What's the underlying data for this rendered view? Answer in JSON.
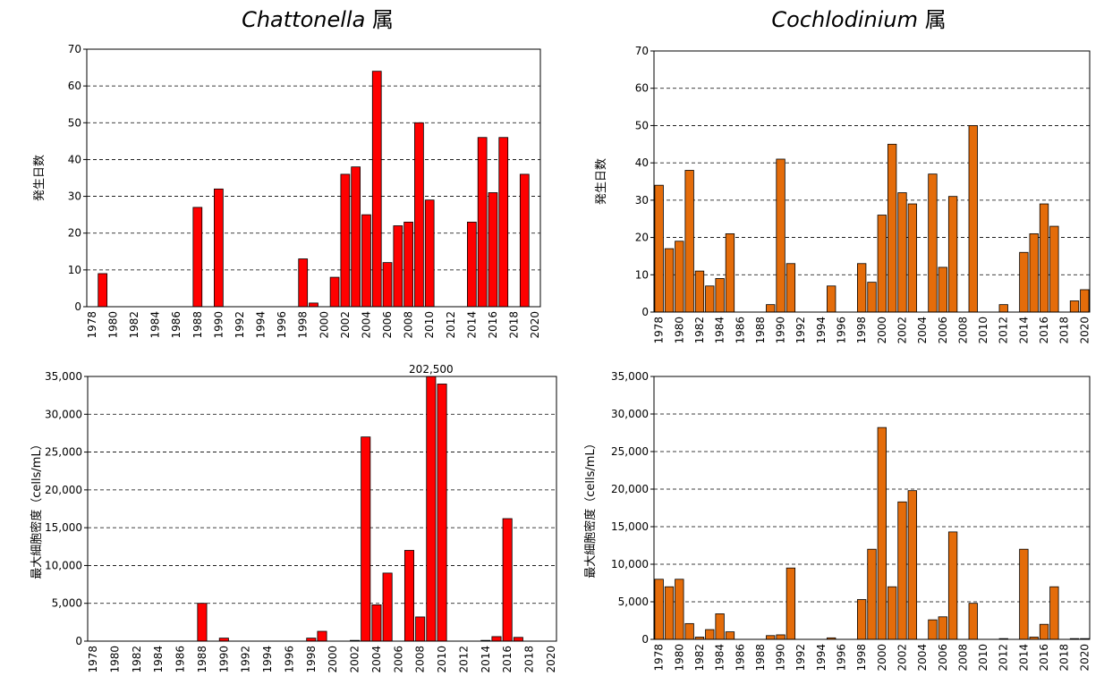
{
  "chart_data": [
    {
      "type": "bar",
      "title": "Chattonella 属",
      "ylabel": "発生日数",
      "categories": [
        "1978",
        null,
        "1980",
        null,
        "1982",
        null,
        "1984",
        null,
        "1986",
        null,
        "1988",
        null,
        "1990",
        null,
        "1992",
        null,
        "1994",
        null,
        "1996",
        null,
        "1998",
        null,
        "2000",
        null,
        "2002",
        null,
        "2004",
        null,
        "2006",
        null,
        "2008",
        null,
        "2010",
        null,
        "2012",
        null,
        "2014",
        null,
        "2016",
        null,
        "2018",
        null,
        "2020"
      ],
      "values": [
        0,
        9,
        0,
        0,
        0,
        0,
        0,
        0,
        0,
        0,
        27,
        0,
        32,
        0,
        0,
        0,
        0,
        0,
        0,
        0,
        13,
        1,
        0,
        8,
        36,
        38,
        25,
        64,
        12,
        22,
        23,
        50,
        29,
        0,
        0,
        0,
        23,
        46,
        31,
        46,
        0,
        36,
        0
      ],
      "color": "#ff0000",
      "ylim": [
        0,
        70
      ],
      "yticks": [
        0,
        10,
        20,
        30,
        40,
        50,
        60,
        70
      ],
      "grid": true
    },
    {
      "type": "bar",
      "title": "Cochlodinium 属",
      "ylabel": "発生日数",
      "categories": [
        "1978",
        null,
        "1980",
        null,
        "1982",
        null,
        "1984",
        null,
        "1986",
        null,
        "1988",
        null,
        "1990",
        null,
        "1992",
        null,
        "1994",
        null,
        "1996",
        null,
        "1998",
        null,
        "2000",
        null,
        "2002",
        null,
        "2004",
        null,
        "2006",
        null,
        "2008",
        null,
        "2010",
        null,
        "2012",
        null,
        "2014",
        null,
        "2016",
        null,
        "2018",
        null,
        "2020"
      ],
      "values": [
        34,
        17,
        19,
        38,
        11,
        7,
        9,
        21,
        0,
        0,
        0,
        2,
        41,
        13,
        0,
        0,
        0,
        7,
        0,
        0,
        13,
        8,
        26,
        45,
        32,
        29,
        0,
        37,
        12,
        31,
        0,
        50,
        0,
        0,
        2,
        0,
        16,
        21,
        29,
        23,
        0,
        3,
        6
      ],
      "color": "#e46c0a",
      "ylim": [
        0,
        70
      ],
      "yticks": [
        0,
        10,
        20,
        30,
        40,
        50,
        60,
        70
      ],
      "grid": true
    },
    {
      "type": "bar",
      "ylabel": "最大細胞密度（cells/mL）",
      "categories": [
        "1978",
        null,
        "1980",
        null,
        "1982",
        null,
        "1984",
        null,
        "1986",
        null,
        "1988",
        null,
        "1990",
        null,
        "1992",
        null,
        "1994",
        null,
        "1996",
        null,
        "1998",
        null,
        "2000",
        null,
        "2002",
        null,
        "2004",
        null,
        "2006",
        null,
        "2008",
        null,
        "2010",
        null,
        "2012",
        null,
        "2014",
        null,
        "2016",
        null,
        "2018",
        null,
        "2020"
      ],
      "values": [
        0,
        0,
        0,
        0,
        0,
        0,
        0,
        0,
        0,
        0,
        5000,
        0,
        400,
        0,
        0,
        0,
        0,
        0,
        0,
        0,
        400,
        1300,
        0,
        0,
        100,
        27000,
        4800,
        9000,
        0,
        12000,
        3200,
        202500,
        34000,
        0,
        0,
        0,
        100,
        600,
        16200,
        500,
        0,
        0,
        0
      ],
      "value_labels": [
        null,
        null,
        null,
        null,
        null,
        null,
        null,
        null,
        null,
        null,
        null,
        null,
        null,
        null,
        null,
        null,
        null,
        null,
        null,
        null,
        null,
        null,
        null,
        null,
        null,
        null,
        null,
        null,
        null,
        null,
        null,
        "202,500",
        null,
        null,
        null,
        null,
        null,
        null,
        null,
        null,
        null,
        null,
        null
      ],
      "color": "#ff0000",
      "ylim": [
        0,
        35000
      ],
      "yticks": [
        0,
        {
          "value": 5000,
          "label": "5,000"
        },
        {
          "value": 10000,
          "label": "10,000"
        },
        {
          "value": 15000,
          "label": "15,000"
        },
        {
          "value": 20000,
          "label": "20,000"
        },
        {
          "value": 25000,
          "label": "25,000"
        },
        {
          "value": 30000,
          "label": "30,000"
        },
        {
          "value": 35000,
          "label": "35,000"
        }
      ],
      "grid": true
    },
    {
      "type": "bar",
      "ylabel": "最大細胞密度（cells/mL）",
      "categories": [
        "1978",
        null,
        "1980",
        null,
        "1982",
        null,
        "1984",
        null,
        "1986",
        null,
        "1988",
        null,
        "1990",
        null,
        "1992",
        null,
        "1994",
        null,
        "1996",
        null,
        "1998",
        null,
        "2000",
        null,
        "2002",
        null,
        "2004",
        null,
        "2006",
        null,
        "2008",
        null,
        "2010",
        null,
        "2012",
        null,
        "2014",
        null,
        "2016",
        null,
        "2018",
        null,
        "2020"
      ],
      "values": [
        8000,
        7000,
        8000,
        2100,
        300,
        1300,
        3400,
        1000,
        0,
        0,
        0,
        500,
        600,
        9500,
        0,
        0,
        0,
        200,
        0,
        0,
        5300,
        12000,
        28200,
        7000,
        18300,
        19800,
        0,
        2600,
        3000,
        14300,
        0,
        4800,
        0,
        0,
        100,
        0,
        12000,
        300,
        2000,
        7000,
        0,
        100,
        100
      ],
      "color": "#e46c0a",
      "ylim": [
        0,
        35000
      ],
      "yticks": [
        0,
        {
          "value": 5000,
          "label": "5,000"
        },
        {
          "value": 10000,
          "label": "10,000"
        },
        {
          "value": 15000,
          "label": "15,000"
        },
        {
          "value": 20000,
          "label": "20,000"
        },
        {
          "value": 25000,
          "label": "25,000"
        },
        {
          "value": 30000,
          "label": "30,000"
        },
        {
          "value": 35000,
          "label": "35,000"
        }
      ],
      "grid": true
    }
  ]
}
